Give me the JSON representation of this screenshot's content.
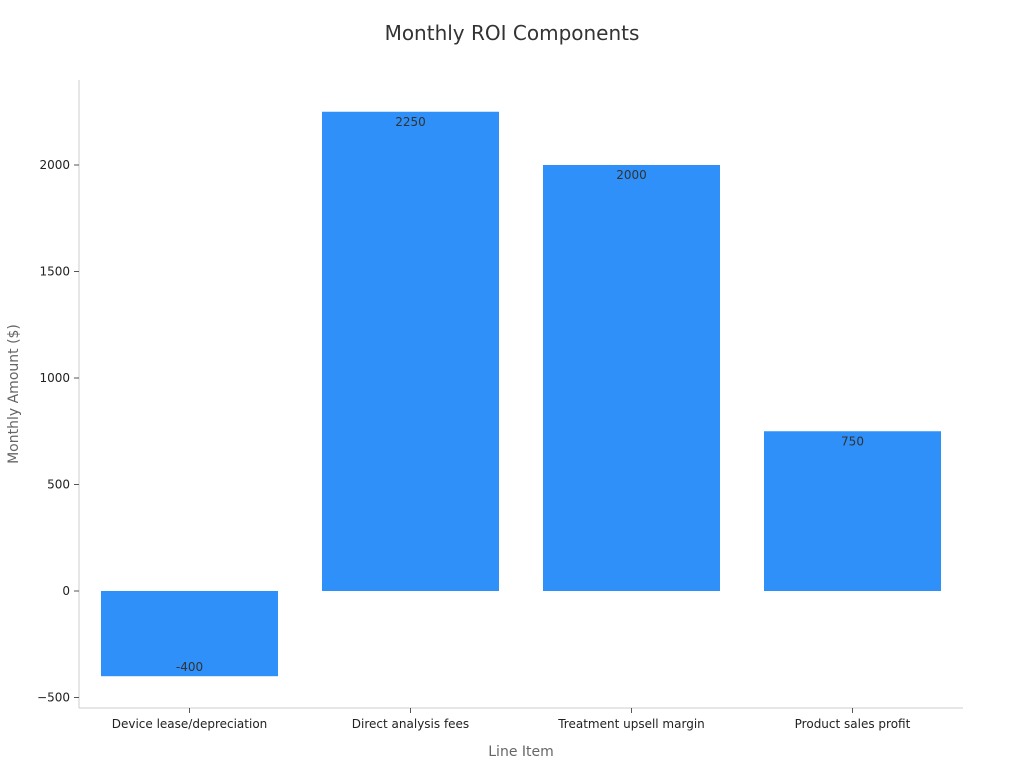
{
  "chart_data": {
    "type": "bar",
    "title": "Monthly ROI Components",
    "xlabel": "Line Item",
    "ylabel": "Monthly Amount ($)",
    "categories": [
      "Device lease/depreciation",
      "Direct analysis fees",
      "Treatment upsell margin",
      "Product sales profit"
    ],
    "values": [
      -400,
      2250,
      2000,
      750
    ],
    "data_labels": [
      "-400",
      "2250",
      "2000",
      "750"
    ],
    "ylim": [
      -550,
      2400
    ],
    "yticks": [
      -500,
      0,
      500,
      1000,
      1500,
      2000
    ],
    "ytick_labels": [
      "−500",
      "0",
      "500",
      "1000",
      "1500",
      "2000"
    ],
    "bar_color": "#2e90f8",
    "grid": false,
    "legend": "none"
  }
}
